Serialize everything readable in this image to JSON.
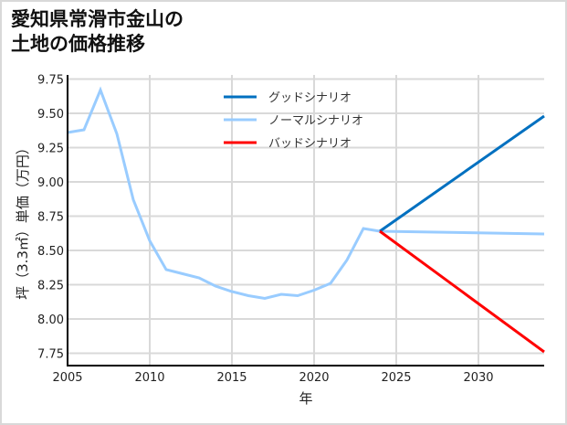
{
  "title": {
    "line1": "愛知県常滑市金山の",
    "line2": "土地の価格推移"
  },
  "colors": {
    "good": "#0070c0",
    "normal": "#99ccff",
    "bad": "#ff0000",
    "grid": "#d9d9d9",
    "axis": "#000000",
    "border": "#d9d9d9"
  },
  "chart_data": {
    "type": "line",
    "title": "愛知県常滑市金山の土地の価格推移",
    "xlabel": "年",
    "ylabel": "坪（3.3㎡）単価（万円）",
    "xlim": [
      2005,
      2034
    ],
    "ylim": [
      7.66,
      9.78
    ],
    "x_ticks": [
      2005,
      2010,
      2015,
      2020,
      2025,
      2030
    ],
    "y_ticks": [
      7.75,
      8.0,
      8.25,
      8.5,
      8.75,
      9.0,
      9.25,
      9.5,
      9.75
    ],
    "y_tick_labels": [
      "7.75",
      "8.00",
      "8.25",
      "8.50",
      "8.75",
      "9.00",
      "9.25",
      "9.50",
      "9.75"
    ],
    "grid": true,
    "legend_position": "upper center",
    "series": [
      {
        "name": "グッドシナリオ",
        "color": "#0070c0",
        "x": [
          2024,
          2034
        ],
        "values": [
          8.64,
          9.48
        ]
      },
      {
        "name": "ノーマルシナリオ",
        "color": "#99ccff",
        "x": [
          2005,
          2006,
          2007,
          2008,
          2009,
          2010,
          2011,
          2012,
          2013,
          2014,
          2015,
          2016,
          2017,
          2018,
          2019,
          2020,
          2021,
          2022,
          2023,
          2024,
          2034
        ],
        "values": [
          9.36,
          9.38,
          9.67,
          9.35,
          8.87,
          8.57,
          8.36,
          8.33,
          8.3,
          8.24,
          8.2,
          8.17,
          8.15,
          8.18,
          8.17,
          8.21,
          8.26,
          8.43,
          8.66,
          8.64,
          8.62
        ]
      },
      {
        "name": "バッドシナリオ",
        "color": "#ff0000",
        "x": [
          2024,
          2034
        ],
        "values": [
          8.64,
          7.76
        ]
      }
    ]
  }
}
